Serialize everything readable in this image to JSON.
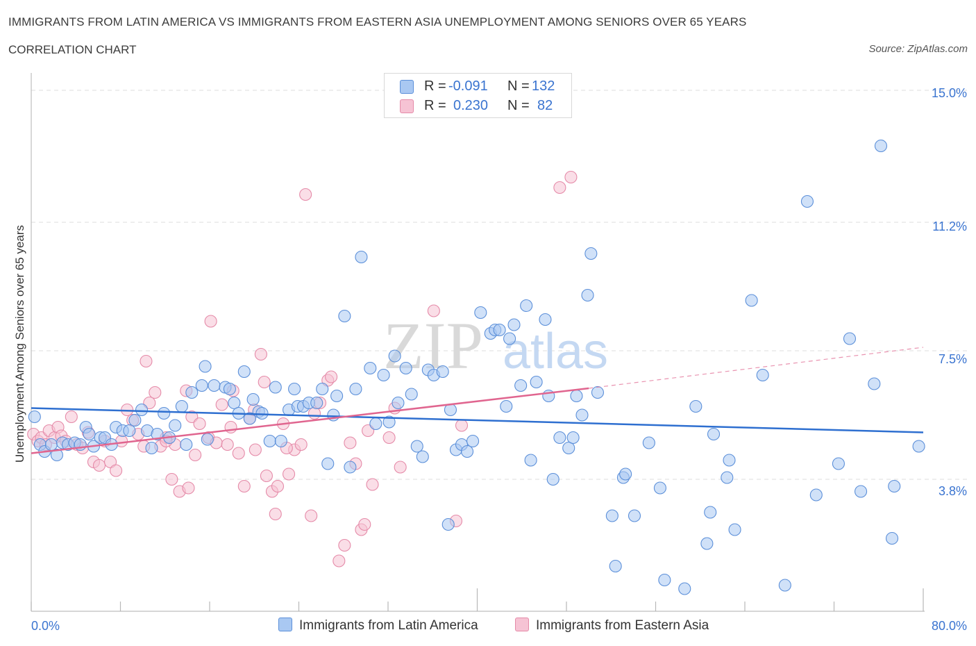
{
  "title": "IMMIGRANTS FROM LATIN AMERICA VS IMMIGRANTS FROM EASTERN ASIA UNEMPLOYMENT AMONG SENIORS OVER 65 YEARS",
  "subtitle": "CORRELATION CHART",
  "source": "Source: ZipAtlas.com",
  "watermark": {
    "zip": "ZIP",
    "atlas": "atlas"
  },
  "legend_stats": {
    "r_label": "R =",
    "n_label": "N =",
    "latin": {
      "r": "-0.091",
      "n": "132"
    },
    "asia": {
      "r": "0.230",
      "n": "82"
    }
  },
  "colors": {
    "latin_fill": "#a9c8f2",
    "latin_stroke": "#5b8fd9",
    "latin_line": "#2e6fd0",
    "asia_fill": "#f6c3d4",
    "asia_stroke": "#e58aa8",
    "asia_line": "#e0658f",
    "axis_text": "#3a74d0",
    "grid": "#dedede"
  },
  "chart_data": {
    "type": "scatter",
    "title": "IMMIGRANTS FROM LATIN AMERICA VS IMMIGRANTS FROM EASTERN ASIA UNEMPLOYMENT AMONG SENIORS OVER 65 YEARS",
    "xlabel": "",
    "ylabel": "Unemployment Among Seniors over 65 years",
    "xlim": [
      0,
      80
    ],
    "ylim": [
      0,
      15.3
    ],
    "x_tick_labels": [
      "0.0%",
      "80.0%"
    ],
    "y_ticks": [
      {
        "value": 3.8,
        "label": "3.8%"
      },
      {
        "value": 7.5,
        "label": "7.5%"
      },
      {
        "value": 11.2,
        "label": "11.2%"
      },
      {
        "value": 15.0,
        "label": "15.0%"
      }
    ],
    "grid": true,
    "legend_position": "top-center and bottom",
    "series": [
      {
        "name": "Immigrants from Latin America",
        "trend": {
          "x": [
            0,
            80
          ],
          "y": [
            5.85,
            5.15
          ]
        },
        "points": [
          [
            0.3,
            5.6
          ],
          [
            0.8,
            4.8
          ],
          [
            1.2,
            4.6
          ],
          [
            1.8,
            4.8
          ],
          [
            2.3,
            4.5
          ],
          [
            2.8,
            4.85
          ],
          [
            3.3,
            4.8
          ],
          [
            3.9,
            4.85
          ],
          [
            4.4,
            4.8
          ],
          [
            4.9,
            5.3
          ],
          [
            5.2,
            5.1
          ],
          [
            5.6,
            4.75
          ],
          [
            6.2,
            5.0
          ],
          [
            6.6,
            5.0
          ],
          [
            7.2,
            4.8
          ],
          [
            7.6,
            5.3
          ],
          [
            8.2,
            5.2
          ],
          [
            8.8,
            5.2
          ],
          [
            9.3,
            5.5
          ],
          [
            9.9,
            5.8
          ],
          [
            10.4,
            5.2
          ],
          [
            10.8,
            4.7
          ],
          [
            11.3,
            5.1
          ],
          [
            11.9,
            5.7
          ],
          [
            12.4,
            5.0
          ],
          [
            12.9,
            5.35
          ],
          [
            13.5,
            5.9
          ],
          [
            13.9,
            4.8
          ],
          [
            14.4,
            6.3
          ],
          [
            15.3,
            6.5
          ],
          [
            15.6,
            7.05
          ],
          [
            15.8,
            4.95
          ],
          [
            16.4,
            6.5
          ],
          [
            17.4,
            6.45
          ],
          [
            17.8,
            6.4
          ],
          [
            18.2,
            6.0
          ],
          [
            18.6,
            5.7
          ],
          [
            19.1,
            6.9
          ],
          [
            19.6,
            5.55
          ],
          [
            19.9,
            6.1
          ],
          [
            20.4,
            5.75
          ],
          [
            20.7,
            5.7
          ],
          [
            21.4,
            4.9
          ],
          [
            21.9,
            6.45
          ],
          [
            22.4,
            4.9
          ],
          [
            23.1,
            5.8
          ],
          [
            23.6,
            6.4
          ],
          [
            23.9,
            5.9
          ],
          [
            24.4,
            5.9
          ],
          [
            24.9,
            6.0
          ],
          [
            25.6,
            6.0
          ],
          [
            26.1,
            6.4
          ],
          [
            26.6,
            4.25
          ],
          [
            27.1,
            5.65
          ],
          [
            27.4,
            6.2
          ],
          [
            28.1,
            8.5
          ],
          [
            28.6,
            4.15
          ],
          [
            29.1,
            6.4
          ],
          [
            29.6,
            10.2
          ],
          [
            30.4,
            7.0
          ],
          [
            30.9,
            5.4
          ],
          [
            31.6,
            6.8
          ],
          [
            32.1,
            5.45
          ],
          [
            32.6,
            7.35
          ],
          [
            32.9,
            6.0
          ],
          [
            33.6,
            7.0
          ],
          [
            34.1,
            6.25
          ],
          [
            34.6,
            4.75
          ],
          [
            35.1,
            4.45
          ],
          [
            35.6,
            6.95
          ],
          [
            36.1,
            6.8
          ],
          [
            36.9,
            6.9
          ],
          [
            37.4,
            2.5
          ],
          [
            37.6,
            5.8
          ],
          [
            38.1,
            4.65
          ],
          [
            38.6,
            4.8
          ],
          [
            39.1,
            4.6
          ],
          [
            39.6,
            4.9
          ],
          [
            40.3,
            8.6
          ],
          [
            41.2,
            8.0
          ],
          [
            41.6,
            8.1
          ],
          [
            42.0,
            8.1
          ],
          [
            42.6,
            5.9
          ],
          [
            42.9,
            7.85
          ],
          [
            43.3,
            8.25
          ],
          [
            43.9,
            6.5
          ],
          [
            44.4,
            8.8
          ],
          [
            44.8,
            4.35
          ],
          [
            45.3,
            6.6
          ],
          [
            46.1,
            8.4
          ],
          [
            46.4,
            6.2
          ],
          [
            46.8,
            3.8
          ],
          [
            47.4,
            5.0
          ],
          [
            48.2,
            4.7
          ],
          [
            48.6,
            5.0
          ],
          [
            48.9,
            6.2
          ],
          [
            49.4,
            5.65
          ],
          [
            49.9,
            9.1
          ],
          [
            50.2,
            10.3
          ],
          [
            50.8,
            6.3
          ],
          [
            52.1,
            2.75
          ],
          [
            52.4,
            1.3
          ],
          [
            53.1,
            3.85
          ],
          [
            53.3,
            3.95
          ],
          [
            54.1,
            2.75
          ],
          [
            55.4,
            4.85
          ],
          [
            56.4,
            3.55
          ],
          [
            56.8,
            0.9
          ],
          [
            58.6,
            0.65
          ],
          [
            59.6,
            5.9
          ],
          [
            60.6,
            1.95
          ],
          [
            60.9,
            2.85
          ],
          [
            61.2,
            5.1
          ],
          [
            62.4,
            3.85
          ],
          [
            62.6,
            4.35
          ],
          [
            63.1,
            2.35
          ],
          [
            64.6,
            8.95
          ],
          [
            65.6,
            6.8
          ],
          [
            67.6,
            0.75
          ],
          [
            69.6,
            11.8
          ],
          [
            70.4,
            3.35
          ],
          [
            72.4,
            4.25
          ],
          [
            73.4,
            7.85
          ],
          [
            74.4,
            3.45
          ],
          [
            75.6,
            6.55
          ],
          [
            76.2,
            13.4
          ],
          [
            77.2,
            2.1
          ],
          [
            77.4,
            3.6
          ],
          [
            79.6,
            4.75
          ]
        ]
      },
      {
        "name": "Immigrants from Eastern Asia",
        "trend": {
          "x": [
            0,
            50
          ],
          "y": [
            4.55,
            6.42
          ]
        },
        "trend_extension": {
          "x": [
            50,
            80
          ],
          "y": [
            6.42,
            7.6
          ]
        },
        "points": [
          [
            0.2,
            5.1
          ],
          [
            0.6,
            4.9
          ],
          [
            0.9,
            5.0
          ],
          [
            1.3,
            4.8
          ],
          [
            1.6,
            5.2
          ],
          [
            2.1,
            5.0
          ],
          [
            2.4,
            5.3
          ],
          [
            2.7,
            5.05
          ],
          [
            3.1,
            4.9
          ],
          [
            3.6,
            5.6
          ],
          [
            4.1,
            4.8
          ],
          [
            4.6,
            4.7
          ],
          [
            5.1,
            5.15
          ],
          [
            5.6,
            4.3
          ],
          [
            6.1,
            4.2
          ],
          [
            6.6,
            4.9
          ],
          [
            7.1,
            4.3
          ],
          [
            7.6,
            4.05
          ],
          [
            8.1,
            4.9
          ],
          [
            8.6,
            5.8
          ],
          [
            9.1,
            5.5
          ],
          [
            9.6,
            5.1
          ],
          [
            10.1,
            4.75
          ],
          [
            10.3,
            7.2
          ],
          [
            10.6,
            6.0
          ],
          [
            11.1,
            6.3
          ],
          [
            11.6,
            4.75
          ],
          [
            12.1,
            5.0
          ],
          [
            12.6,
            3.8
          ],
          [
            12.9,
            4.8
          ],
          [
            13.3,
            3.45
          ],
          [
            13.9,
            6.35
          ],
          [
            14.1,
            3.55
          ],
          [
            14.4,
            5.6
          ],
          [
            14.7,
            4.5
          ],
          [
            15.1,
            5.4
          ],
          [
            15.9,
            5.0
          ],
          [
            16.1,
            8.35
          ],
          [
            16.6,
            4.85
          ],
          [
            17.1,
            5.95
          ],
          [
            17.6,
            4.8
          ],
          [
            18.1,
            6.35
          ],
          [
            18.6,
            4.55
          ],
          [
            19.1,
            3.6
          ],
          [
            19.6,
            5.55
          ],
          [
            20.1,
            4.65
          ],
          [
            20.6,
            7.4
          ],
          [
            20.9,
            6.6
          ],
          [
            21.1,
            3.9
          ],
          [
            21.6,
            3.45
          ],
          [
            21.9,
            2.8
          ],
          [
            22.1,
            3.6
          ],
          [
            22.6,
            5.4
          ],
          [
            23.1,
            3.95
          ],
          [
            23.6,
            4.65
          ],
          [
            24.6,
            12.0
          ],
          [
            25.1,
            2.75
          ],
          [
            25.4,
            5.7
          ],
          [
            26.6,
            6.65
          ],
          [
            26.9,
            6.75
          ],
          [
            27.6,
            1.45
          ],
          [
            28.1,
            1.9
          ],
          [
            28.6,
            4.85
          ],
          [
            29.1,
            4.25
          ],
          [
            29.6,
            2.35
          ],
          [
            29.9,
            2.5
          ],
          [
            30.6,
            3.65
          ],
          [
            32.1,
            5.0
          ],
          [
            32.6,
            5.85
          ],
          [
            33.1,
            4.15
          ],
          [
            36.1,
            8.65
          ],
          [
            38.1,
            2.6
          ],
          [
            38.6,
            5.35
          ],
          [
            47.4,
            12.2
          ],
          [
            48.4,
            12.5
          ],
          [
            12.1,
            4.9
          ],
          [
            17.9,
            5.3
          ],
          [
            20.0,
            5.8
          ],
          [
            22.9,
            4.7
          ],
          [
            24.2,
            4.8
          ],
          [
            25.9,
            6.0
          ],
          [
            30.2,
            5.2
          ]
        ]
      }
    ]
  },
  "bottom_legend": {
    "latin": "Immigrants from Latin America",
    "asia": "Immigrants from Eastern Asia"
  }
}
